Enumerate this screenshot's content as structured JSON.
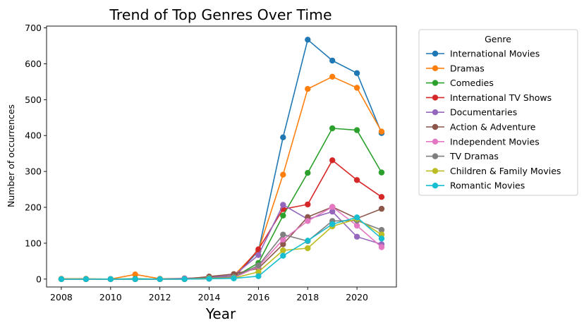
{
  "chart_data": {
    "type": "line",
    "title": "Trend of Top Genres Over Time",
    "xlabel": "Year",
    "ylabel": "Number of occurrences",
    "legend_title": "Genre",
    "legend_placement": "outside-right-top",
    "grid": false,
    "xlim": [
      2007.4,
      2021.6
    ],
    "ylim": [
      -22,
      705
    ],
    "xticks": [
      2008,
      2010,
      2012,
      2014,
      2016,
      2018,
      2020
    ],
    "yticks": [
      0,
      100,
      200,
      300,
      400,
      500,
      600,
      700
    ],
    "x": [
      2008,
      2009,
      2010,
      2011,
      2012,
      2013,
      2014,
      2015,
      2016,
      2017,
      2018,
      2019,
      2020,
      2021
    ],
    "series": [
      {
        "name": "International Movies",
        "color": "#1f77b4",
        "values": [
          0,
          0,
          0,
          0,
          0,
          0,
          3,
          5,
          78,
          395,
          667,
          609,
          574,
          407
        ]
      },
      {
        "name": "Dramas",
        "color": "#ff7f0e",
        "values": [
          1,
          1,
          0,
          13,
          1,
          2,
          5,
          10,
          80,
          291,
          530,
          564,
          533,
          411
        ]
      },
      {
        "name": "Comedies",
        "color": "#2ca02c",
        "values": [
          0,
          0,
          0,
          1,
          0,
          1,
          3,
          5,
          45,
          177,
          296,
          420,
          415,
          297
        ]
      },
      {
        "name": "International TV Shows",
        "color": "#d62728",
        "values": [
          0,
          0,
          0,
          0,
          0,
          0,
          1,
          3,
          83,
          195,
          208,
          331,
          276,
          229
        ]
      },
      {
        "name": "Documentaries",
        "color": "#9467bd",
        "values": [
          0,
          0,
          0,
          0,
          0,
          2,
          5,
          10,
          67,
          207,
          167,
          188,
          118,
          97
        ]
      },
      {
        "name": "Action & Adventure",
        "color": "#8c564b",
        "values": [
          0,
          0,
          0,
          0,
          0,
          0,
          7,
          14,
          30,
          97,
          173,
          201,
          169,
          196
        ]
      },
      {
        "name": "Independent Movies",
        "color": "#e377c2",
        "values": [
          0,
          0,
          0,
          0,
          0,
          0,
          2,
          4,
          35,
          110,
          162,
          201,
          149,
          89
        ]
      },
      {
        "name": "TV Dramas",
        "color": "#7f7f7f",
        "values": [
          0,
          0,
          0,
          0,
          0,
          0,
          3,
          6,
          38,
          124,
          106,
          162,
          163,
          137
        ]
      },
      {
        "name": "Children & Family Movies",
        "color": "#bcbd22",
        "values": [
          0,
          0,
          0,
          0,
          0,
          0,
          2,
          3,
          20,
          80,
          86,
          147,
          168,
          124
        ]
      },
      {
        "name": "Romantic Movies",
        "color": "#17becf",
        "values": [
          0,
          0,
          0,
          0,
          0,
          0,
          1,
          2,
          8,
          65,
          107,
          153,
          172,
          113
        ]
      }
    ]
  }
}
